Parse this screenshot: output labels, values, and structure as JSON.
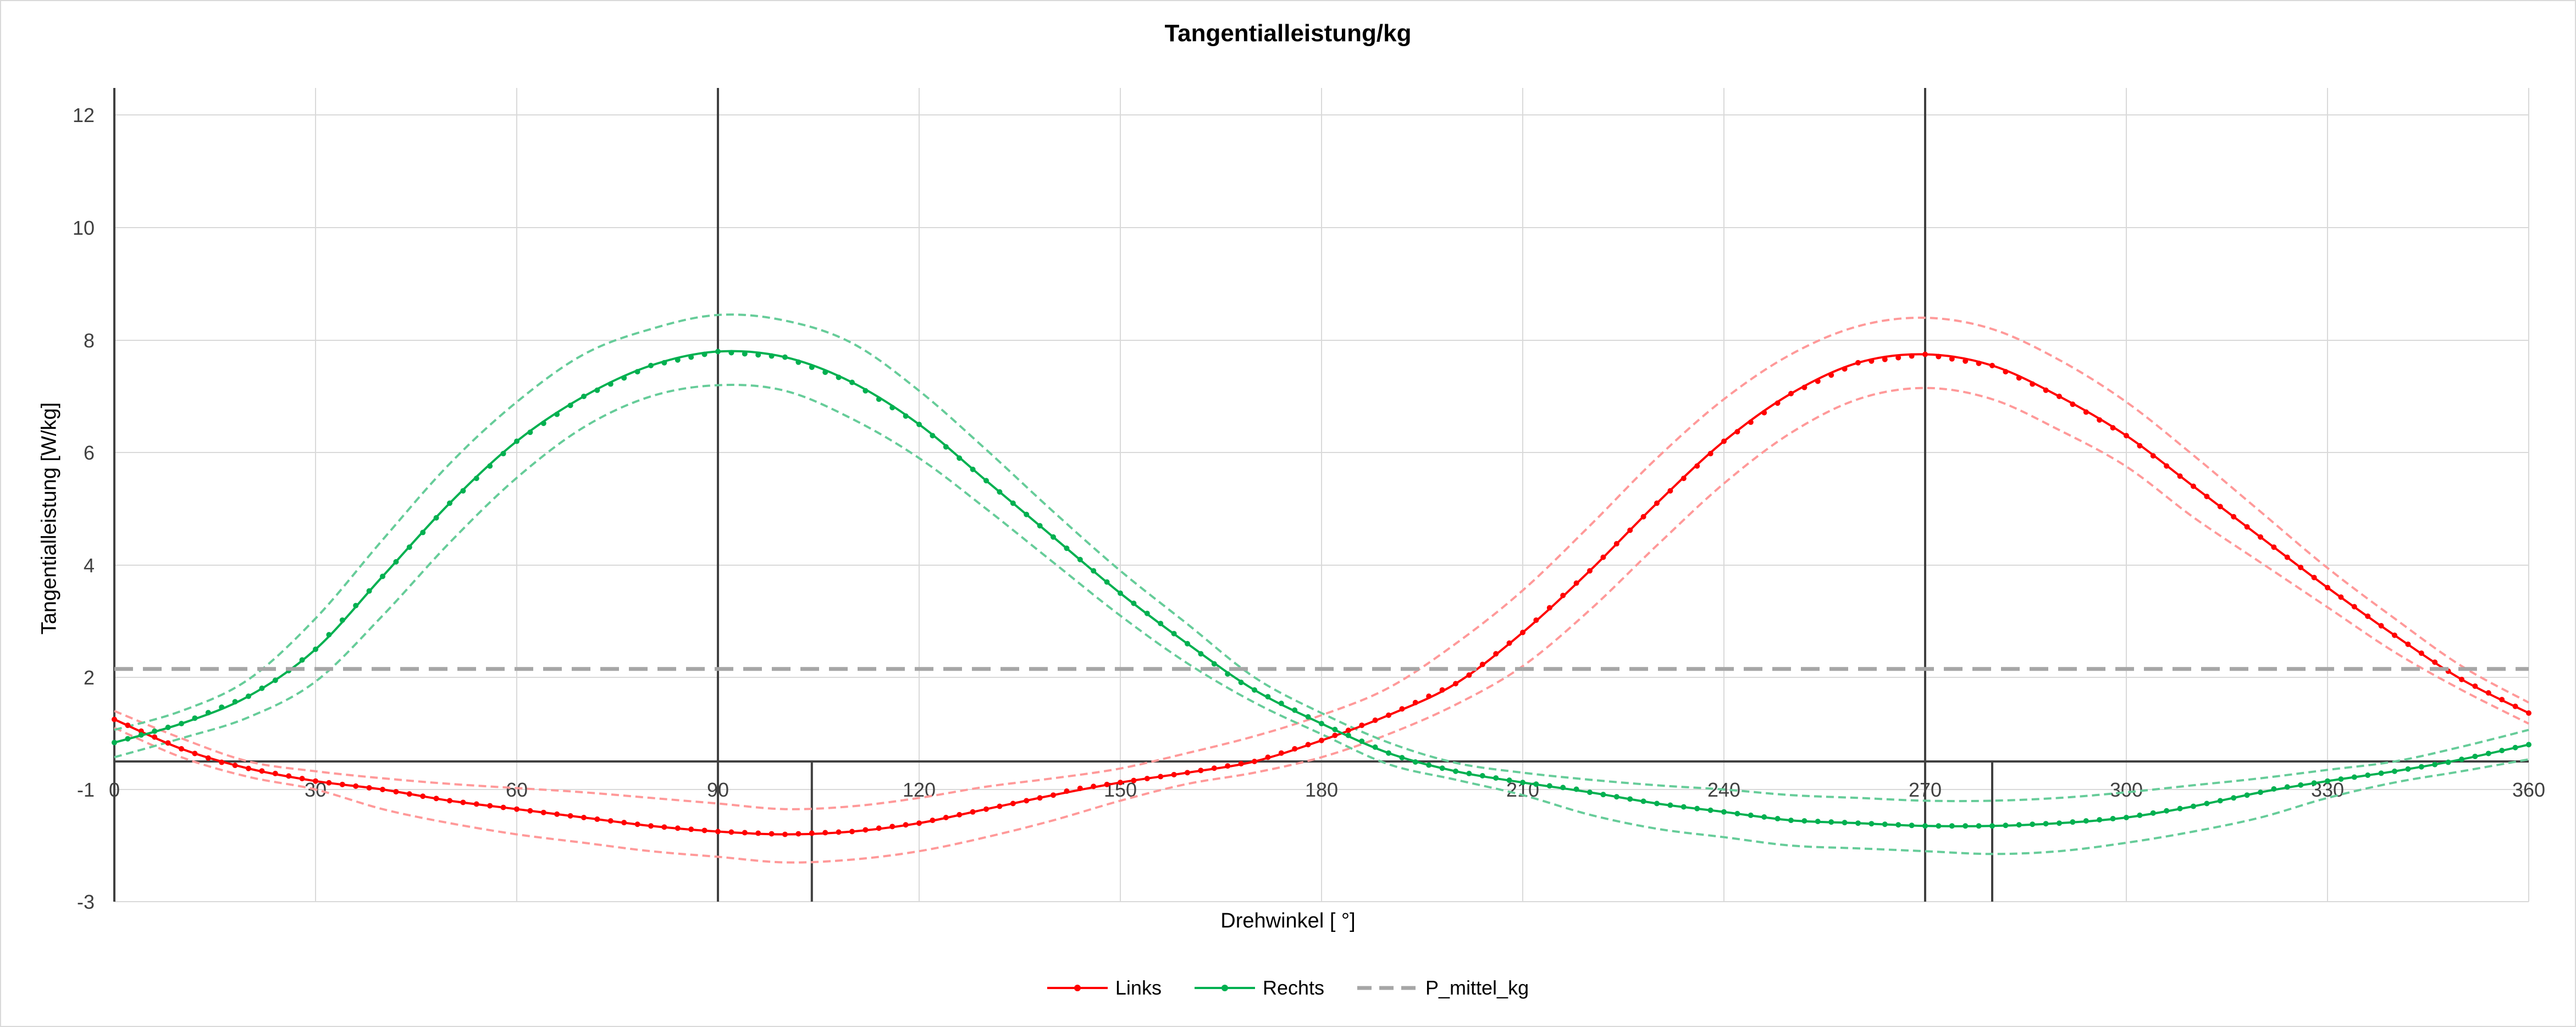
{
  "chart_data": {
    "type": "line",
    "title": "Tangentialleistung/kg",
    "xlabel": "Drehwinkel [ °]",
    "ylabel": "Tangentialleistung [W/kg]",
    "xlim": [
      0,
      360
    ],
    "ylim": [
      -3,
      12.5
    ],
    "x_ticks": [
      0,
      30,
      60,
      90,
      120,
      150,
      180,
      210,
      240,
      270,
      300,
      330,
      360
    ],
    "y_ticks": [
      -3,
      -1,
      2,
      4,
      6,
      8,
      10,
      12
    ],
    "grid": true,
    "legend_position": "bottom",
    "x_axis_at_y": 0,
    "vertical_reference_lines": {
      "full_height": [
        90,
        270
      ],
      "lower_section": [
        104,
        280
      ]
    },
    "x": [
      0,
      10,
      20,
      30,
      40,
      50,
      60,
      70,
      80,
      90,
      100,
      110,
      120,
      130,
      140,
      150,
      160,
      170,
      180,
      190,
      200,
      210,
      220,
      230,
      240,
      250,
      260,
      270,
      280,
      290,
      300,
      310,
      320,
      330,
      340,
      350,
      360
    ],
    "series": [
      {
        "name": "Links",
        "color": "#ff0000",
        "marker": "dot",
        "values": [
          1.0,
          0.3,
          -0.25,
          -0.7,
          -1.0,
          -1.2,
          -1.35,
          -1.5,
          -1.65,
          -1.75,
          -1.8,
          -1.75,
          -1.6,
          -1.35,
          -1.1,
          -0.75,
          -0.4,
          0.0,
          0.5,
          1.1,
          1.85,
          2.8,
          3.9,
          5.1,
          6.2,
          7.05,
          7.6,
          7.75,
          7.55,
          7.0,
          6.3,
          5.4,
          4.5,
          3.6,
          2.75,
          1.95,
          1.15
        ]
      },
      {
        "name": "Rechts",
        "color": "#00b050",
        "marker": "dot",
        "values": [
          0.45,
          0.9,
          1.55,
          2.5,
          3.8,
          5.1,
          6.2,
          7.0,
          7.55,
          7.8,
          7.7,
          7.25,
          6.5,
          5.5,
          4.5,
          3.5,
          2.6,
          1.7,
          0.9,
          0.2,
          -0.35,
          -0.75,
          -1.05,
          -1.25,
          -1.4,
          -1.55,
          -1.6,
          -1.65,
          -1.65,
          -1.6,
          -1.5,
          -1.3,
          -1.05,
          -0.7,
          -0.35,
          0.05,
          0.4
        ]
      },
      {
        "name": "P_mittel_kg",
        "color": "#a6a6a6",
        "style": "dashed",
        "values": [
          2.15,
          2.15,
          2.15,
          2.15,
          2.15,
          2.15,
          2.15,
          2.15,
          2.15,
          2.15,
          2.15,
          2.15,
          2.15,
          2.15,
          2.15,
          2.15,
          2.15,
          2.15,
          2.15,
          2.15,
          2.15,
          2.15,
          2.15,
          2.15,
          2.15,
          2.15,
          2.15,
          2.15,
          2.15,
          2.15,
          2.15,
          2.15,
          2.15,
          2.15,
          2.15,
          2.15,
          2.15
        ]
      }
    ],
    "bands": [
      {
        "series": "Links",
        "color": "#ff9999",
        "upper": [
          1.2,
          0.55,
          0.0,
          -0.35,
          -0.6,
          -0.8,
          -0.95,
          -1.05,
          -1.15,
          -1.25,
          -1.35,
          -1.3,
          -1.15,
          -0.9,
          -0.6,
          -0.25,
          0.2,
          0.6,
          1.1,
          1.75,
          2.6,
          3.55,
          4.7,
          5.9,
          6.95,
          7.75,
          8.25,
          8.4,
          8.2,
          7.65,
          6.9,
          5.95,
          4.95,
          3.95,
          3.05,
          2.2,
          1.4
        ],
        "lower": [
          0.8,
          0.1,
          -0.55,
          -1.0,
          -1.35,
          -1.6,
          -1.8,
          -1.95,
          -2.1,
          -2.2,
          -2.3,
          -2.25,
          -2.1,
          -1.85,
          -1.55,
          -1.2,
          -0.8,
          -0.4,
          0.1,
          0.65,
          1.35,
          2.2,
          3.2,
          4.35,
          5.45,
          6.35,
          6.95,
          7.15,
          6.95,
          6.4,
          5.75,
          4.85,
          4.05,
          3.25,
          2.45,
          1.7,
          0.9
        ]
      },
      {
        "series": "Rechts",
        "color": "#66cc99",
        "upper": [
          0.75,
          1.2,
          1.95,
          3.05,
          4.45,
          5.8,
          6.9,
          7.75,
          8.2,
          8.45,
          8.35,
          7.95,
          7.1,
          6.05,
          4.95,
          3.9,
          2.95,
          2.0,
          1.15,
          0.45,
          -0.05,
          -0.4,
          -0.65,
          -0.85,
          -1.0,
          -1.1,
          -1.15,
          -1.2,
          -1.2,
          -1.15,
          -1.05,
          -0.85,
          -0.6,
          -0.3,
          0.0,
          0.35,
          0.75
        ],
        "lower": [
          0.1,
          0.55,
          1.05,
          1.9,
          3.1,
          4.4,
          5.55,
          6.45,
          7.0,
          7.2,
          7.1,
          6.6,
          5.9,
          5.0,
          4.05,
          3.1,
          2.25,
          1.4,
          0.65,
          -0.1,
          -0.65,
          -1.1,
          -1.45,
          -1.7,
          -1.85,
          -2.0,
          -2.05,
          -2.1,
          -2.15,
          -2.1,
          -1.95,
          -1.75,
          -1.5,
          -1.15,
          -0.75,
          -0.35,
          0.05
        ]
      }
    ]
  }
}
